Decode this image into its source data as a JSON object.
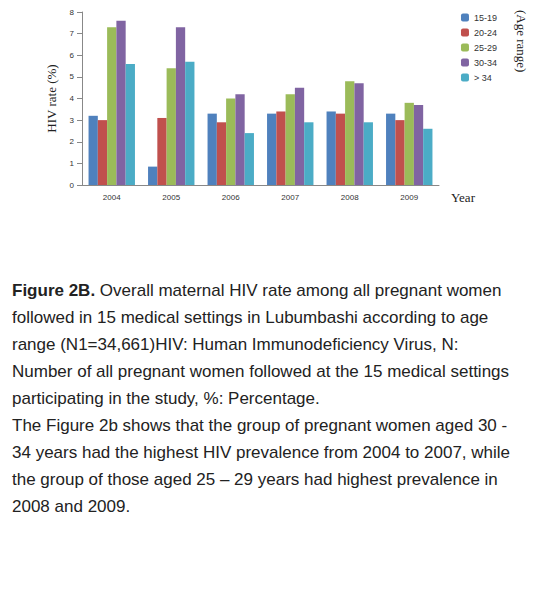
{
  "chart_data": {
    "type": "bar",
    "categories": [
      "2004",
      "2005",
      "2006",
      "2007",
      "2008",
      "2009"
    ],
    "series": [
      {
        "name": "15-19",
        "color": "#4f81bd",
        "values": [
          3.2,
          0.85,
          3.3,
          3.3,
          3.4,
          3.3
        ]
      },
      {
        "name": "20-24",
        "color": "#c0504d",
        "values": [
          3.0,
          3.1,
          2.9,
          3.4,
          3.3,
          3.0
        ]
      },
      {
        "name": "25-29",
        "color": "#9bbb59",
        "values": [
          7.3,
          5.4,
          4.0,
          4.2,
          4.8,
          3.8
        ]
      },
      {
        "name": "30-34",
        "color": "#8064a2",
        "values": [
          7.6,
          7.3,
          4.2,
          4.5,
          4.7,
          3.7
        ]
      },
      {
        "name": "> 34",
        "color": "#4bacc6",
        "values": [
          5.6,
          5.7,
          2.4,
          2.9,
          2.9,
          2.6
        ]
      }
    ],
    "y_label": "HIV rate (%)",
    "x_label": "Year",
    "legend_title": "(Age range)",
    "ylim": [
      0,
      8
    ],
    "yticks": [
      0,
      1,
      2,
      3,
      4,
      5,
      6,
      7,
      8
    ],
    "legend": "top-right",
    "grid": false
  },
  "caption": {
    "label": "Figure 2B.",
    "text": "Overall maternal HIV rate among all pregnant women followed in 15 medical settings in Lubumbashi according to age range (N1=34,661)HIV: Human Immunodeficiency Virus, N: Number of all pregnant women followed at the 15 medical settings participating in the study, %: Percentage."
  },
  "paragraph": "The Figure 2b shows that the group of pregnant women aged 30 - 34 years had the highest HIV prevalence from 2004 to 2007, while the group of those aged 25 – 29 years had highest prevalence in 2008 and 2009."
}
